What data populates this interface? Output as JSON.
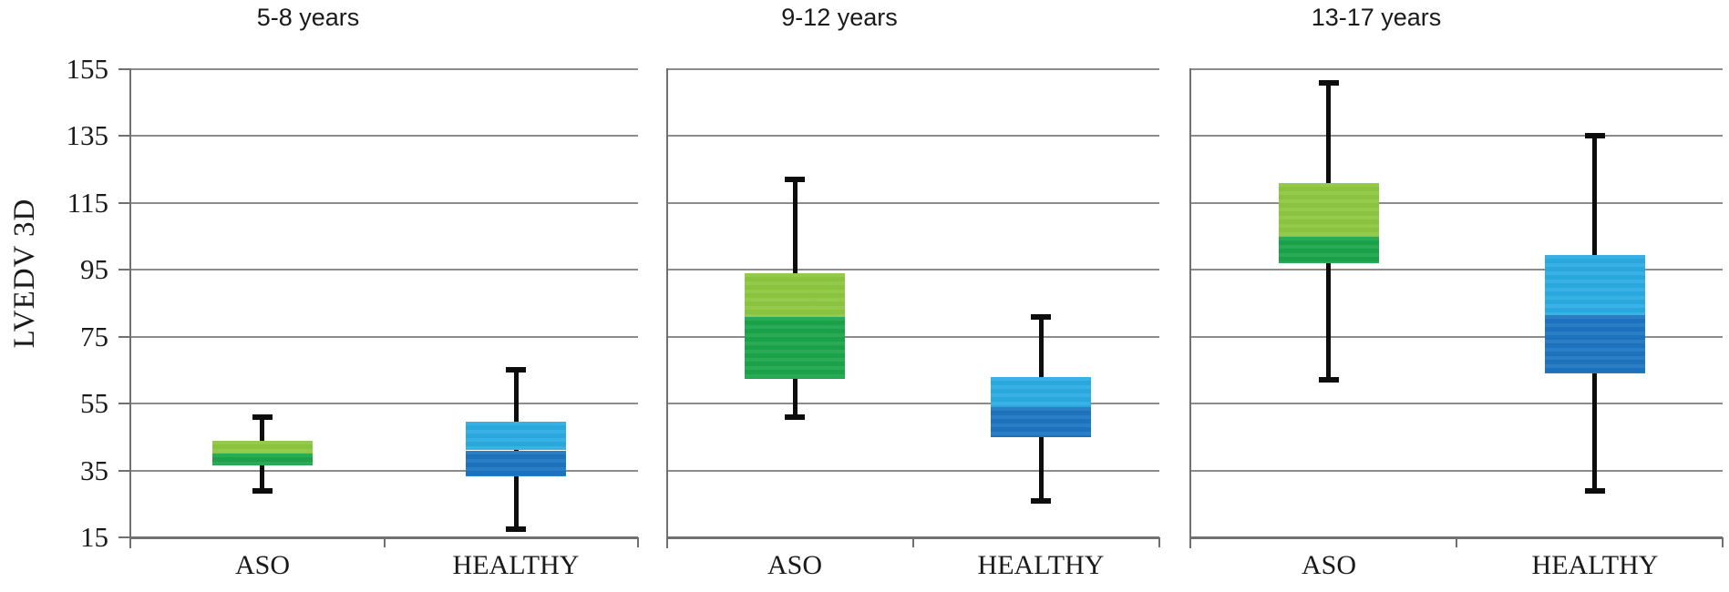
{
  "chart_data": {
    "type": "boxplot",
    "ylabel": "LVEDV 3D",
    "y_min": 15,
    "y_max": 155,
    "y_tick_step": 20,
    "y_ticks": [
      "155",
      "135",
      "115",
      "95",
      "75",
      "55",
      "35",
      "15"
    ],
    "grid": true,
    "legend": false,
    "categories": [
      "ASO",
      "HEALTHY"
    ],
    "series_colors": [
      {
        "name": "ASO",
        "upper": "#8cc63f",
        "lower": "#1aa449"
      },
      {
        "name": "HEALTHY",
        "upper": "#2aabe2",
        "lower": "#1c74c0"
      }
    ],
    "axis_colors": {
      "gridline": "#8c8c8c",
      "axis": "#707070",
      "whisker": "#0d0d0d",
      "text": "#1a1a1a"
    },
    "panels": [
      {
        "title": "5-8 years",
        "boxes": [
          {
            "group": "ASO",
            "whisker_low": 29,
            "q1": 36.5,
            "median": 40,
            "q3": 44,
            "whisker_high": 51
          },
          {
            "group": "HEALTHY",
            "whisker_low": 17.5,
            "q1": 33.5,
            "median": 41,
            "q3": 49.5,
            "whisker_high": 65
          }
        ]
      },
      {
        "title": "9-12 years",
        "boxes": [
          {
            "group": "ASO",
            "whisker_low": 51,
            "q1": 62.5,
            "median": 81,
            "q3": 94,
            "whisker_high": 122
          },
          {
            "group": "HEALTHY",
            "whisker_low": 26,
            "q1": 45,
            "median": 54,
            "q3": 63,
            "whisker_high": 81
          }
        ]
      },
      {
        "title": "13-17 years",
        "boxes": [
          {
            "group": "ASO",
            "whisker_low": 62,
            "q1": 97,
            "median": 105,
            "q3": 121,
            "whisker_high": 151
          },
          {
            "group": "HEALTHY",
            "whisker_low": 29,
            "q1": 64,
            "median": 81.5,
            "q3": 99.5,
            "whisker_high": 135
          }
        ]
      }
    ]
  }
}
